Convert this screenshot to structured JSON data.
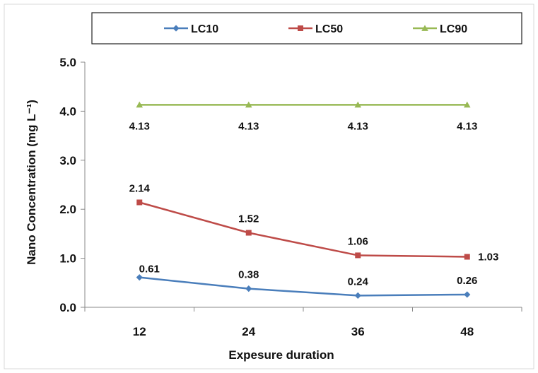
{
  "chart_data": {
    "type": "line",
    "x": [
      "12",
      "24",
      "36",
      "48"
    ],
    "series": [
      {
        "name": "LC10",
        "values": [
          0.61,
          0.38,
          0.24,
          0.26
        ],
        "labels": [
          "0.61",
          "0.38",
          "0.24",
          "0.26"
        ],
        "color": "#4a7ebb",
        "marker": "diamond"
      },
      {
        "name": "LC50",
        "values": [
          2.14,
          1.52,
          1.06,
          1.03
        ],
        "labels": [
          "2.14",
          "1.52",
          "1.06",
          "1.03"
        ],
        "color": "#be4b48",
        "marker": "square"
      },
      {
        "name": "LC90",
        "values": [
          4.13,
          4.13,
          4.13,
          4.13
        ],
        "labels": [
          "4.13",
          "4.13",
          "4.13",
          "4.13"
        ],
        "color": "#98b954",
        "marker": "triangle"
      }
    ],
    "xlabel": "Expesure duration",
    "ylabel": "Nano Concentration (mg L⁻¹)",
    "ylim": [
      0,
      5
    ],
    "yticks": [
      "0.0",
      "1.0",
      "2.0",
      "3.0",
      "4.0",
      "5.0"
    ],
    "grid": false,
    "legend_position": "top"
  }
}
